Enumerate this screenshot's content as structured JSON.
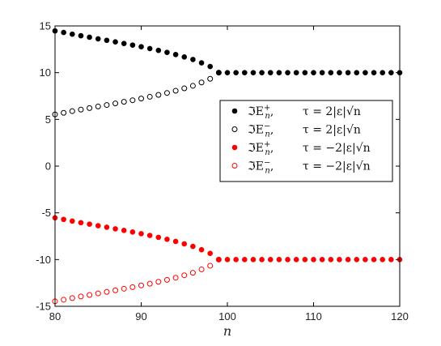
{
  "chart_data": {
    "type": "scatter",
    "xlabel": "n",
    "ylabel": "",
    "xlim": [
      80,
      120
    ],
    "ylim": [
      -15,
      15
    ],
    "xticks": [
      80,
      90,
      100,
      110,
      120
    ],
    "yticks": [
      -15,
      -10,
      -5,
      0,
      5,
      10,
      15
    ],
    "grid": false,
    "legend_position": "right",
    "series": [
      {
        "name": "ℑE_n^+,   τ = 2|ε|√n",
        "color": "#000000",
        "marker": "filled-circle",
        "x": [
          80,
          81,
          82,
          83,
          84,
          85,
          86,
          87,
          88,
          89,
          90,
          91,
          92,
          93,
          94,
          95,
          96,
          97,
          98,
          99,
          100,
          101,
          102,
          103,
          104,
          105,
          106,
          107,
          108,
          109,
          110,
          111,
          112,
          113,
          114,
          115,
          116,
          117,
          118,
          119,
          120
        ],
        "y": [
          14.47,
          14.3,
          14.12,
          13.95,
          13.79,
          13.62,
          13.46,
          13.29,
          13.12,
          12.95,
          12.77,
          12.58,
          12.38,
          12.17,
          11.94,
          11.68,
          11.41,
          11.05,
          10.66,
          10.0,
          10,
          10,
          10,
          10,
          10,
          10,
          10,
          10,
          10,
          10,
          10,
          10,
          10,
          10,
          10,
          10,
          10,
          10,
          10,
          10,
          10
        ]
      },
      {
        "name": "ℑE_n^−,   τ = 2|ε|√n",
        "color": "#000000",
        "marker": "open-circle",
        "x": [
          80,
          81,
          82,
          83,
          84,
          85,
          86,
          87,
          88,
          89,
          90,
          91,
          92,
          93,
          94,
          95,
          96,
          97,
          98,
          99
        ],
        "y": [
          5.53,
          5.7,
          5.88,
          6.05,
          6.21,
          6.38,
          6.54,
          6.71,
          6.88,
          7.05,
          7.23,
          7.42,
          7.62,
          7.83,
          8.06,
          8.32,
          8.59,
          8.95,
          9.34,
          10.0
        ]
      },
      {
        "name": "ℑE_n^+,   τ = −2|ε|√n",
        "color": "#ff0000",
        "marker": "filled-circle",
        "x": [
          80,
          81,
          82,
          83,
          84,
          85,
          86,
          87,
          88,
          89,
          90,
          91,
          92,
          93,
          94,
          95,
          96,
          97,
          98,
          99,
          100,
          101,
          102,
          103,
          104,
          105,
          106,
          107,
          108,
          109,
          110,
          111,
          112,
          113,
          114,
          115,
          116,
          117,
          118,
          119,
          120
        ],
        "y": [
          -5.53,
          -5.7,
          -5.88,
          -6.05,
          -6.21,
          -6.38,
          -6.54,
          -6.71,
          -6.88,
          -7.05,
          -7.23,
          -7.42,
          -7.62,
          -7.83,
          -8.06,
          -8.32,
          -8.59,
          -8.95,
          -9.34,
          -10.0,
          -10,
          -10,
          -10,
          -10,
          -10,
          -10,
          -10,
          -10,
          -10,
          -10,
          -10,
          -10,
          -10,
          -10,
          -10,
          -10,
          -10,
          -10,
          -10,
          -10,
          -10
        ]
      },
      {
        "name": "ℑE_n^−,   τ = −2|ε|√n",
        "color": "#ff0000",
        "marker": "open-circle",
        "x": [
          80,
          81,
          82,
          83,
          84,
          85,
          86,
          87,
          88,
          89,
          90,
          91,
          92,
          93,
          94,
          95,
          96,
          97,
          98,
          99
        ],
        "y": [
          -14.47,
          -14.3,
          -14.12,
          -13.95,
          -13.79,
          -13.62,
          -13.46,
          -13.29,
          -13.12,
          -12.95,
          -12.77,
          -12.58,
          -12.38,
          -12.17,
          -11.94,
          -11.68,
          -11.41,
          -11.05,
          -10.66,
          -10.0
        ]
      }
    ],
    "legend": [
      {
        "lhs": "ℑE",
        "sub": "n",
        "sup": "+",
        "rhs": "τ = 2|ε|√n"
      },
      {
        "lhs": "ℑE",
        "sub": "n",
        "sup": "−",
        "rhs": "τ = 2|ε|√n"
      },
      {
        "lhs": "ℑE",
        "sub": "n",
        "sup": "+",
        "rhs": "τ = −2|ε|√n"
      },
      {
        "lhs": "ℑE",
        "sub": "n",
        "sup": "−",
        "rhs": "τ = −2|ε|√n"
      }
    ]
  }
}
